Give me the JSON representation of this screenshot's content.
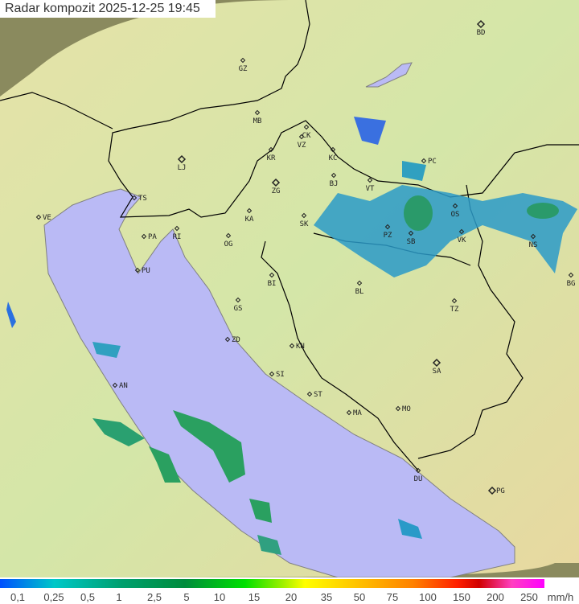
{
  "title": "Radar kompozit  2025-12-25   19:45",
  "legend": {
    "unit": "mm/h",
    "values": [
      "0,1",
      "0,25",
      "0,5",
      "1",
      "2,5",
      "5",
      "10",
      "15",
      "20",
      "35",
      "50",
      "75",
      "100",
      "150",
      "200",
      "250"
    ]
  },
  "colors": {
    "sea": "#babaf5",
    "land": "#d8e8a8",
    "outside": "#8c8c60",
    "border": "#000000",
    "coast": "#808080"
  },
  "cities": [
    "BD",
    "GZ",
    "MB",
    "CK",
    "VZ",
    "KR",
    "KC",
    "PC",
    "BJ",
    "VT",
    "LJ",
    "ZG",
    "TS",
    "VE",
    "KA",
    "SK",
    "OS",
    "PZ",
    "SB",
    "VK",
    "NS",
    "BG",
    "RI",
    "PA",
    "PU",
    "OG",
    "BI",
    "BL",
    "GS",
    "TZ",
    "ZD",
    "KN",
    "SA",
    "SI",
    "ST",
    "AN",
    "MO",
    "MA",
    "DU",
    "PG"
  ]
}
